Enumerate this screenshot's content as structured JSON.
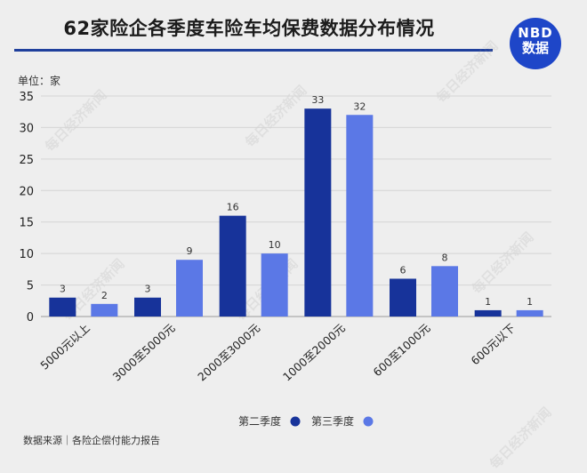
{
  "title": "62家险企各季度车险车均保费数据分布情况",
  "logo": {
    "line1": "NBD",
    "line2": "数据"
  },
  "unit_label": "单位：家",
  "source": "数据来源｜各险企偿付能力报告",
  "watermark": "每日经济新闻",
  "colors": {
    "q2": "#17339a",
    "q3": "#5b78e6",
    "title_line": "#1f3f9c",
    "logo_bg": "#1e46c8"
  },
  "chart_data": {
    "type": "bar",
    "categories": [
      "5000元以上",
      "3000至5000元",
      "2000至3000元",
      "1000至2000元",
      "600至1000元",
      "600元以下"
    ],
    "series": [
      {
        "name": "第二季度",
        "values": [
          3,
          3,
          16,
          33,
          6,
          1
        ]
      },
      {
        "name": "第三季度",
        "values": [
          2,
          9,
          10,
          32,
          8,
          1
        ]
      }
    ],
    "y_ticks": [
      0,
      5,
      10,
      15,
      20,
      25,
      30,
      35
    ],
    "ylim": [
      0,
      35
    ],
    "grid": true,
    "legend_position": "bottom-center"
  }
}
